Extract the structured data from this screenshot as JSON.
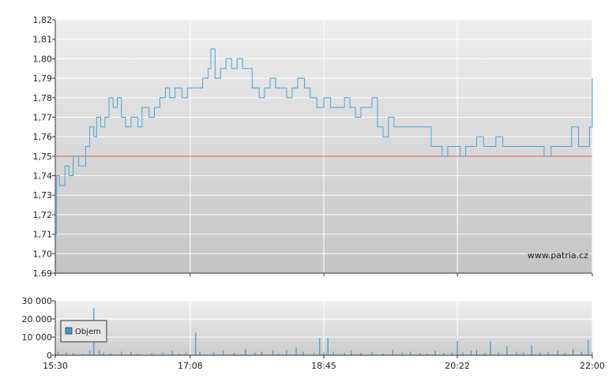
{
  "watermark": "www.patria.cz",
  "colors": {
    "line": "#4aa3d4",
    "reference": "#e05050",
    "volume": "#3a9bcf",
    "grid": "#ffffff",
    "axis": "#333333",
    "plot_top": "#eeeeee",
    "plot_bottom": "#c4c4c4"
  },
  "chart_data": [
    {
      "type": "line",
      "name": "price",
      "ylim": [
        1.69,
        1.82
      ],
      "y_ticks": [
        "1,82",
        "1,81",
        "1,80",
        "1,79",
        "1,78",
        "1,77",
        "1,76",
        "1,75",
        "1,74",
        "1,73",
        "1,72",
        "1,71",
        "1,70",
        "1.69"
      ],
      "reference_value": 1.75,
      "grid": true,
      "series": [
        {
          "points": [
            [
              "15:30",
              1.71
            ],
            [
              "15:31",
              1.74
            ],
            [
              "15:33",
              1.735
            ],
            [
              "15:37",
              1.745
            ],
            [
              "15:40",
              1.74
            ],
            [
              "15:43",
              1.75
            ],
            [
              "15:47",
              1.745
            ],
            [
              "15:52",
              1.755
            ],
            [
              "15:55",
              1.765
            ],
            [
              "15:58",
              1.76
            ],
            [
              "16:00",
              1.77
            ],
            [
              "16:03",
              1.765
            ],
            [
              "16:06",
              1.77
            ],
            [
              "16:09",
              1.78
            ],
            [
              "16:12",
              1.775
            ],
            [
              "16:15",
              1.78
            ],
            [
              "16:18",
              1.77
            ],
            [
              "16:21",
              1.765
            ],
            [
              "16:25",
              1.77
            ],
            [
              "16:30",
              1.765
            ],
            [
              "16:33",
              1.775
            ],
            [
              "16:38",
              1.77
            ],
            [
              "16:42",
              1.775
            ],
            [
              "16:46",
              1.78
            ],
            [
              "16:50",
              1.785
            ],
            [
              "16:53",
              1.78
            ],
            [
              "16:57",
              1.785
            ],
            [
              "17:02",
              1.78
            ],
            [
              "17:06",
              1.785
            ],
            [
              "17:12",
              1.785
            ],
            [
              "17:17",
              1.79
            ],
            [
              "17:21",
              1.795
            ],
            [
              "17:23",
              1.805
            ],
            [
              "17:26",
              1.79
            ],
            [
              "17:30",
              1.795
            ],
            [
              "17:34",
              1.8
            ],
            [
              "17:38",
              1.795
            ],
            [
              "17:42",
              1.8
            ],
            [
              "17:46",
              1.795
            ],
            [
              "17:50",
              1.795
            ],
            [
              "17:53",
              1.785
            ],
            [
              "17:58",
              1.78
            ],
            [
              "18:02",
              1.785
            ],
            [
              "18:06",
              1.79
            ],
            [
              "18:10",
              1.785
            ],
            [
              "18:14",
              1.785
            ],
            [
              "18:18",
              1.78
            ],
            [
              "18:22",
              1.785
            ],
            [
              "18:26",
              1.79
            ],
            [
              "18:31",
              1.785
            ],
            [
              "18:35",
              1.78
            ],
            [
              "18:40",
              1.775
            ],
            [
              "18:45",
              1.78
            ],
            [
              "18:50",
              1.775
            ],
            [
              "18:55",
              1.775
            ],
            [
              "19:00",
              1.78
            ],
            [
              "19:04",
              1.775
            ],
            [
              "19:08",
              1.77
            ],
            [
              "19:12",
              1.775
            ],
            [
              "19:16",
              1.775
            ],
            [
              "19:20",
              1.78
            ],
            [
              "19:24",
              1.765
            ],
            [
              "19:28",
              1.76
            ],
            [
              "19:32",
              1.77
            ],
            [
              "19:36",
              1.765
            ],
            [
              "19:40",
              1.765
            ],
            [
              "19:45",
              1.765
            ],
            [
              "19:50",
              1.765
            ],
            [
              "19:55",
              1.765
            ],
            [
              "20:00",
              1.765
            ],
            [
              "20:03",
              1.755
            ],
            [
              "20:07",
              1.755
            ],
            [
              "20:11",
              1.75
            ],
            [
              "20:15",
              1.755
            ],
            [
              "20:19",
              1.755
            ],
            [
              "20:24",
              1.75
            ],
            [
              "20:28",
              1.755
            ],
            [
              "20:32",
              1.755
            ],
            [
              "20:36",
              1.76
            ],
            [
              "20:41",
              1.755
            ],
            [
              "20:45",
              1.755
            ],
            [
              "20:50",
              1.76
            ],
            [
              "20:55",
              1.755
            ],
            [
              "21:00",
              1.755
            ],
            [
              "21:05",
              1.755
            ],
            [
              "21:10",
              1.755
            ],
            [
              "21:15",
              1.755
            ],
            [
              "21:20",
              1.755
            ],
            [
              "21:25",
              1.75
            ],
            [
              "21:30",
              1.755
            ],
            [
              "21:35",
              1.755
            ],
            [
              "21:40",
              1.755
            ],
            [
              "21:45",
              1.765
            ],
            [
              "21:50",
              1.755
            ],
            [
              "21:55",
              1.755
            ],
            [
              "21:58",
              1.765
            ],
            [
              "22:00",
              1.79
            ]
          ]
        }
      ]
    },
    {
      "type": "bar",
      "name": "volume",
      "ylim": [
        0,
        30000
      ],
      "y_ticks": [
        "30 000",
        "20 000",
        "10 000",
        "0"
      ],
      "x_ticks": [
        "15:30",
        "17:08",
        "18:45",
        "20:22",
        "22:00"
      ],
      "legend": {
        "label": "Objem",
        "placement": "left"
      },
      "grid": true,
      "series": [
        {
          "points": [
            [
              "15:32",
              2000
            ],
            [
              "15:38",
              1500
            ],
            [
              "15:43",
              1200
            ],
            [
              "15:50",
              800
            ],
            [
              "15:55",
              2500
            ],
            [
              "15:58",
              26000
            ],
            [
              "16:02",
              3000
            ],
            [
              "16:05",
              1500
            ],
            [
              "16:10",
              1000
            ],
            [
              "16:18",
              2000
            ],
            [
              "16:25",
              1800
            ],
            [
              "16:30",
              800
            ],
            [
              "16:40",
              1200
            ],
            [
              "16:48",
              1500
            ],
            [
              "16:55",
              2500
            ],
            [
              "17:00",
              1000
            ],
            [
              "17:05",
              1500
            ],
            [
              "17:12",
              12500
            ],
            [
              "17:15",
              2000
            ],
            [
              "17:25",
              1500
            ],
            [
              "17:32",
              2500
            ],
            [
              "17:40",
              1200
            ],
            [
              "17:48",
              3500
            ],
            [
              "17:55",
              1500
            ],
            [
              "18:00",
              2000
            ],
            [
              "18:08",
              2500
            ],
            [
              "18:12",
              1200
            ],
            [
              "18:18",
              3000
            ],
            [
              "18:25",
              4000
            ],
            [
              "18:30",
              2000
            ],
            [
              "18:38",
              1500
            ],
            [
              "18:42",
              9500
            ],
            [
              "18:45",
              1500
            ],
            [
              "18:48",
              9500
            ],
            [
              "18:52",
              2000
            ],
            [
              "19:00",
              1500
            ],
            [
              "19:05",
              2500
            ],
            [
              "19:12",
              1200
            ],
            [
              "19:20",
              1800
            ],
            [
              "19:28",
              1000
            ],
            [
              "19:35",
              3000
            ],
            [
              "19:42",
              1500
            ],
            [
              "19:48",
              2000
            ],
            [
              "19:55",
              1200
            ],
            [
              "20:00",
              1000
            ],
            [
              "20:06",
              2500
            ],
            [
              "20:12",
              1200
            ],
            [
              "20:18",
              1500
            ],
            [
              "20:22",
              8000
            ],
            [
              "20:26",
              1500
            ],
            [
              "20:32",
              2500
            ],
            [
              "20:36",
              3000
            ],
            [
              "20:42",
              1200
            ],
            [
              "20:46",
              7500
            ],
            [
              "20:52",
              1500
            ],
            [
              "20:58",
              5000
            ],
            [
              "21:05",
              2000
            ],
            [
              "21:10",
              1500
            ],
            [
              "21:16",
              5500
            ],
            [
              "21:22",
              1500
            ],
            [
              "21:28",
              1800
            ],
            [
              "21:35",
              2500
            ],
            [
              "21:40",
              1200
            ],
            [
              "21:46",
              3500
            ],
            [
              "21:52",
              2000
            ],
            [
              "21:57",
              8500
            ],
            [
              "22:00",
              1500
            ]
          ]
        }
      ]
    }
  ]
}
